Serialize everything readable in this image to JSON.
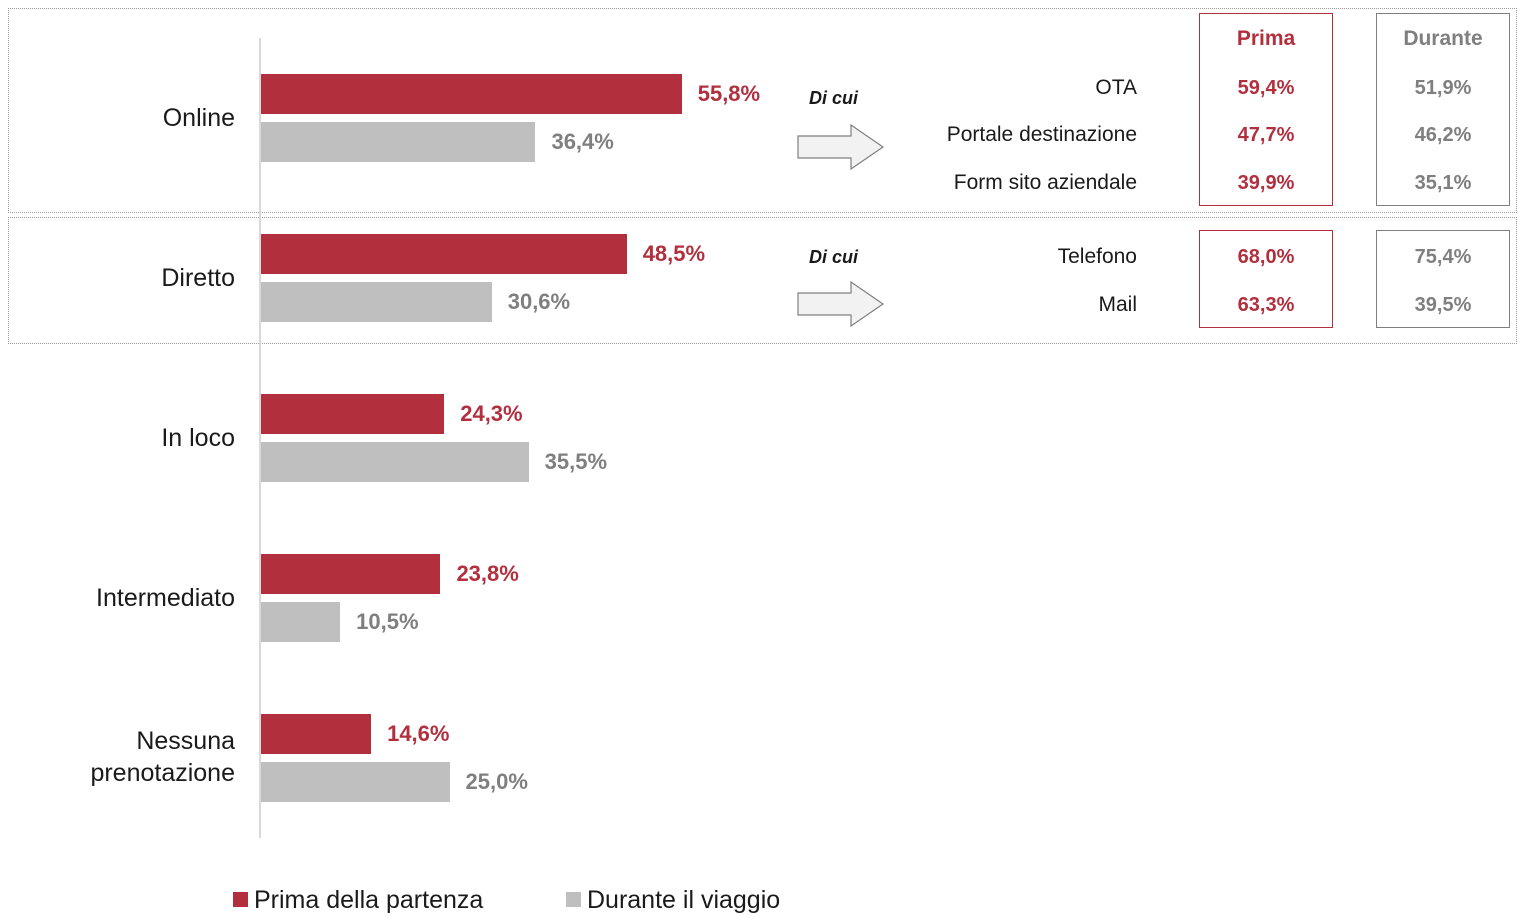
{
  "colors": {
    "prima": "#b22f3e",
    "durante": "#bfbfbf",
    "durante_text": "#7f7f7f"
  },
  "chart_data": {
    "type": "bar",
    "orientation": "horizontal",
    "categories": [
      "Online",
      "Diretto",
      "In loco",
      "Intermediato",
      "Nessuna prenotazione"
    ],
    "series": [
      {
        "name": "Prima della partenza",
        "values": [
          55.8,
          48.5,
          24.3,
          23.8,
          14.6
        ],
        "labels": [
          "55,8%",
          "48,5%",
          "24,3%",
          "23,8%",
          "14,6%"
        ]
      },
      {
        "name": "Durante il viaggio",
        "values": [
          36.4,
          30.6,
          35.5,
          10.5,
          25.0
        ],
        "labels": [
          "36,4%",
          "30,6%",
          "35,5%",
          "10,5%",
          "25,0%"
        ]
      }
    ],
    "legend": {
      "position": "bottom",
      "entries": [
        "Prima della partenza",
        "Durante il viaggio"
      ]
    },
    "breakdown": {
      "headers": {
        "prima": "Prima",
        "durante": "Durante"
      },
      "groups": [
        {
          "category": "Online",
          "intro": "Di cui",
          "rows": [
            {
              "label": "OTA",
              "prima": "59,4%",
              "durante": "51,9%"
            },
            {
              "label": "Portale destinazione",
              "prima": "47,7%",
              "durante": "46,2%"
            },
            {
              "label": "Form sito aziendale",
              "prima": "39,9%",
              "durante": "35,1%"
            }
          ]
        },
        {
          "category": "Diretto",
          "intro": "Di cui",
          "rows": [
            {
              "label": "Telefono",
              "prima": "68,0%",
              "durante": "75,4%"
            },
            {
              "label": "Mail",
              "prima": "63,3%",
              "durante": "39,5%"
            }
          ]
        }
      ]
    }
  }
}
